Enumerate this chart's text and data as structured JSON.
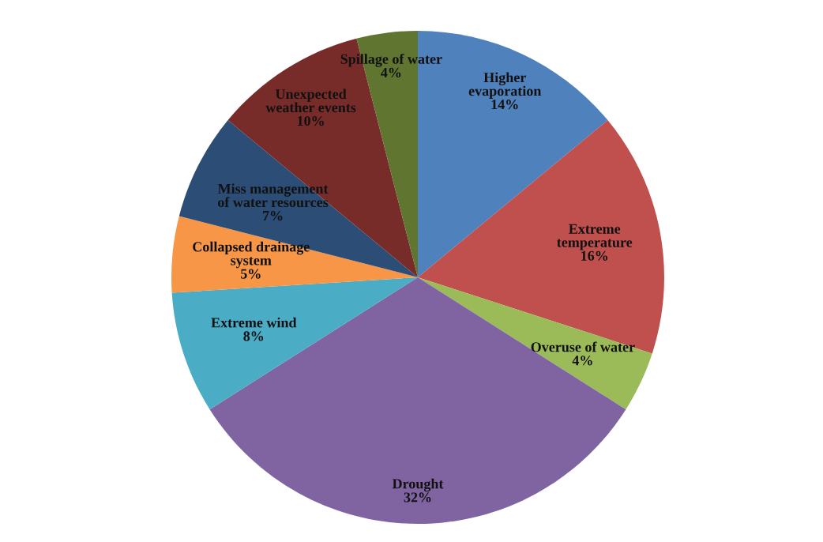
{
  "chart_data": {
    "type": "pie",
    "categories": [
      "Higher\nevaporation",
      "Extreme\ntemperature",
      "Overuse of water",
      "Drought",
      "Extreme wind",
      "Collapsed drainage\nsystem",
      "Miss management\nof water resources",
      "Unexpected\nweather events",
      "Spillage of water"
    ],
    "values": [
      14,
      16,
      4,
      32,
      8,
      5,
      7,
      10,
      4
    ],
    "colors": [
      "#4f81bd",
      "#c0504d",
      "#9bbb59",
      "#8064a2",
      "#4bacc6",
      "#f79646",
      "#2c4d75",
      "#772c2a",
      "#5f7530"
    ],
    "value_labels": [
      "14%",
      "16%",
      "4%",
      "32%",
      "8%",
      "5%",
      "7%",
      "10%",
      "4%"
    ]
  }
}
